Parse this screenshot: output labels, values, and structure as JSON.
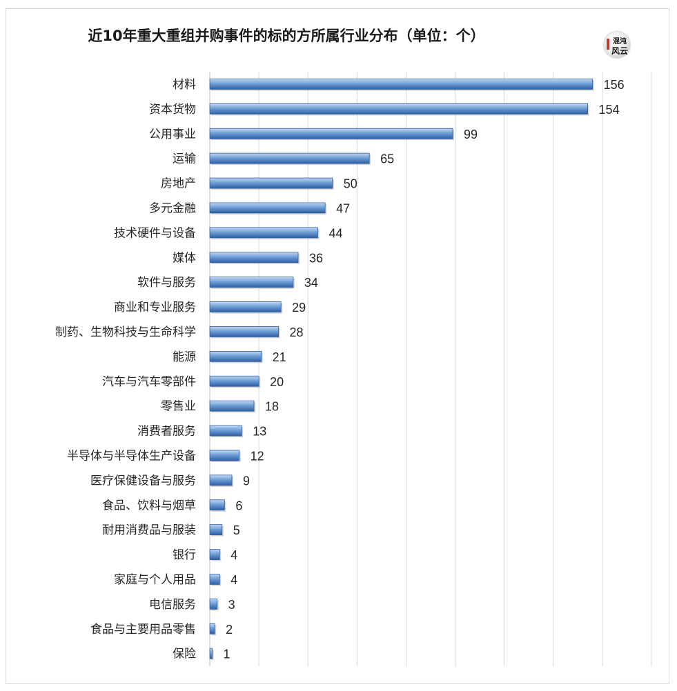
{
  "chart_data": {
    "type": "bar",
    "orientation": "horizontal",
    "title": "近10年重大重组并购事件的标的方所属行业分布（单位：个）",
    "categories": [
      "材料",
      "资本货物",
      "公用事业",
      "运输",
      "房地产",
      "多元金融",
      "技术硬件与设备",
      "媒体",
      "软件与服务",
      "商业和专业服务",
      "制药、生物科技与生命科学",
      "能源",
      "汽车与汽车零部件",
      "零售业",
      "消费者服务",
      "半导体与半导体生产设备",
      "医疗保健设备与服务",
      "食品、饮料与烟草",
      "耐用消费品与服装",
      "银行",
      "家庭与个人用品",
      "电信服务",
      "食品与主要用品零售",
      "保险"
    ],
    "values": [
      156,
      154,
      99,
      65,
      50,
      47,
      44,
      36,
      34,
      29,
      28,
      21,
      20,
      18,
      13,
      12,
      9,
      6,
      5,
      4,
      4,
      3,
      2,
      1
    ],
    "xlim": [
      0,
      180
    ],
    "grid": true,
    "legend": "none",
    "bar_color": "#4f81bd"
  },
  "logo": {
    "text_lines": [
      "混沌",
      "风云"
    ]
  }
}
